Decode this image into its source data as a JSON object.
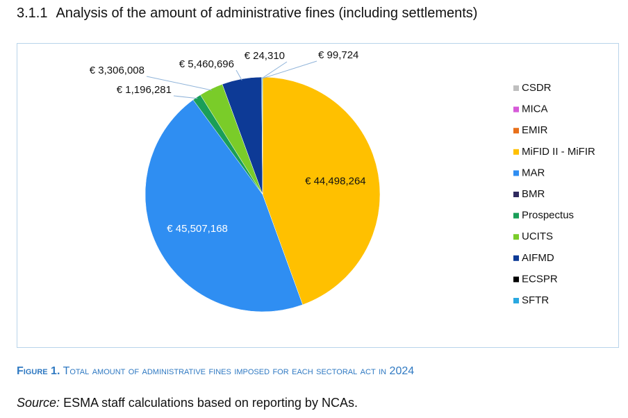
{
  "heading": {
    "number": "3.1.1",
    "title": "Analysis of the amount of administrative fines (including settlements)"
  },
  "chart_data": {
    "type": "pie",
    "categories": [
      "CSDR",
      "MICA",
      "EMIR",
      "MiFID II - MiFIR",
      "MAR",
      "BMR",
      "Prospectus",
      "UCITS",
      "AIFMD",
      "ECSPR",
      "SFTR"
    ],
    "values": [
      0,
      0,
      0,
      44498264,
      45507168,
      0,
      1196281,
      3306008,
      5460696,
      24310,
      99724
    ],
    "value_labels": [
      null,
      null,
      null,
      "€ 44,498,264",
      "€ 45,507,168",
      null,
      "€ 1,196,281",
      "€ 3,306,008",
      "€ 5,460,696",
      "€ 24,310",
      "€ 99,724"
    ],
    "colors": [
      "#bfbfbf",
      "#d65ad8",
      "#e8701a",
      "#ffc000",
      "#2f8ef2",
      "#2f2a5e",
      "#1a9e58",
      "#7acc29",
      "#0d3a96",
      "#000000",
      "#2aa8e0"
    ],
    "legend": "right"
  },
  "caption": {
    "label": "Figure 1.",
    "text": "Total amount of administrative fines imposed for each sectoral act in 2024"
  },
  "source": {
    "prefix": "Source:",
    "text": "ESMA staff calculations based on reporting by NCAs."
  }
}
